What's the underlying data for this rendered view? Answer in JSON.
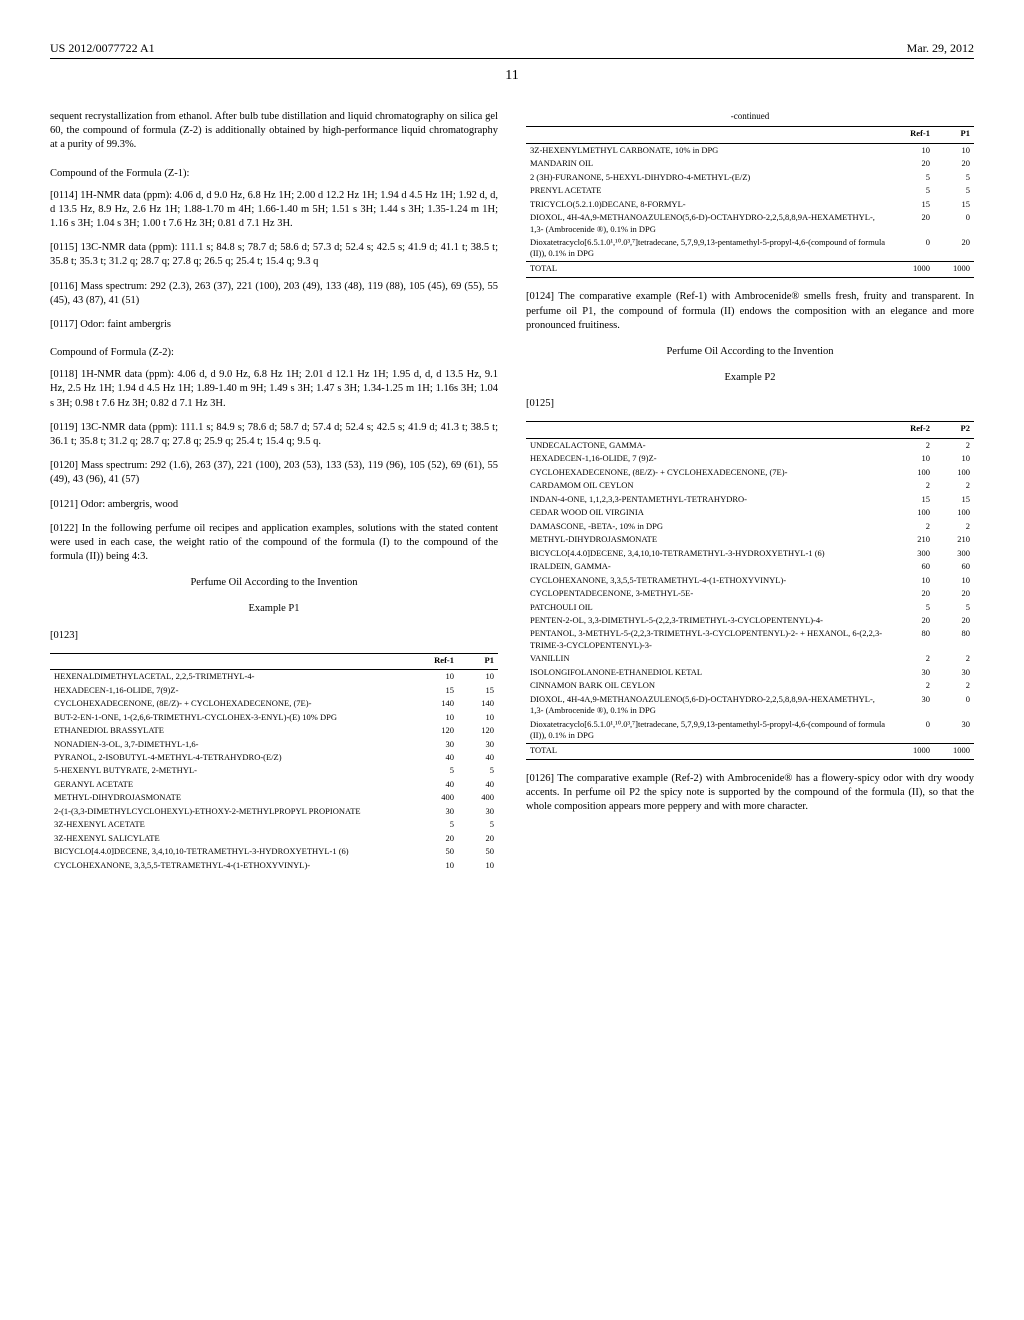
{
  "header": {
    "left": "US 2012/0077722 A1",
    "right": "Mar. 29, 2012"
  },
  "page_number": "11",
  "col1": {
    "intro": "sequent recrystallization from ethanol. After bulb tube distillation and liquid chromatography on silica gel 60, the compound of formula (Z-2) is additionally obtained by high-performance liquid chromatography at a purity of 99.3%.",
    "z1_title": "Compound of the Formula (Z-1):",
    "p0114": "[0114]   1H-NMR data (ppm): 4.06 d, d 9.0 Hz, 6.8 Hz 1H; 2.00 d 12.2 Hz 1H; 1.94 d 4.5 Hz 1H; 1.92 d, d, d 13.5 Hz, 8.9 Hz, 2.6 Hz 1H; 1.88-1.70 m 4H; 1.66-1.40 m 5H; 1.51 s 3H; 1.44 s 3H; 1.35-1.24 m 1H; 1.16 s 3H; 1.04 s 3H; 1.00 t 7.6 Hz 3H; 0.81 d 7.1 Hz 3H.",
    "p0115": "[0115]   13C-NMR data (ppm): 111.1 s; 84.8 s; 78.7 d; 58.6 d; 57.3 d; 52.4 s; 42.5 s; 41.9 d; 41.1 t; 38.5 t; 35.8 t; 35.3 t; 31.2 q; 28.7 q; 27.8 q; 26.5 q; 25.4 t; 15.4 q; 9.3 q",
    "p0116": "[0116]   Mass spectrum: 292 (2.3), 263 (37), 221 (100), 203 (49), 133 (48), 119 (88), 105 (45), 69 (55), 55 (45), 43 (87), 41 (51)",
    "p0117": "[0117]   Odor: faint ambergris",
    "z2_title": "Compound of Formula (Z-2):",
    "p0118": "[0118]   1H-NMR data (ppm): 4.06 d, d 9.0 Hz, 6.8 Hz 1H; 2.01 d 12.1 Hz 1H; 1.95 d, d, d 13.5 Hz, 9.1 Hz, 2.5 Hz 1H; 1.94 d 4.5 Hz 1H; 1.89-1.40 m 9H; 1.49 s 3H; 1.47 s 3H; 1.34-1.25 m 1H; 1.16s 3H; 1.04 s 3H; 0.98 t 7.6 Hz 3H; 0.82 d 7.1 Hz 3H.",
    "p0119": "[0119]   13C-NMR data (ppm): 111.1 s; 84.9 s; 78.6 d; 58.7 d; 57.4 d; 52.4 s; 42.5 s; 41.9 d; 41.3 t; 38.5 t; 36.1 t; 35.8 t; 31.2 q; 28.7 q; 27.8 q; 25.9 q; 25.4 t; 15.4 q; 9.5 q.",
    "p0120": "[0120]   Mass spectrum: 292 (1.6), 263 (37), 221 (100), 203 (53), 133 (53), 119 (96), 105 (52), 69 (61), 55 (49), 43 (96), 41 (57)",
    "p0121": "[0121]   Odor: ambergris, wood",
    "p0122": "[0122]   In the following perfume oil recipes and application examples, solutions with the stated content were used in each case, the weight ratio of the compound of the formula (I) to the compound of the formula (II)) being 4:3.",
    "perfume_title": "Perfume Oil According to the Invention",
    "example_p1": "Example P1",
    "p0123": "[0123]",
    "table1": {
      "col_a": "Ref-1",
      "col_b": "P1",
      "rows": [
        [
          "HEXENALDIMETHYLACETAL, 2,2,5-TRIMETHYL-4-",
          "10",
          "10"
        ],
        [
          "HEXADECEN-1,16-OLIDE, 7(9)Z-",
          "15",
          "15"
        ],
        [
          "CYCLOHEXADECENONE, (8E/Z)- + CYCLOHEXADECENONE, (7E)-",
          "140",
          "140"
        ],
        [
          "BUT-2-EN-1-ONE, 1-(2,6,6-TRIMETHYL-CYCLOHEX-3-ENYL)-(E) 10% DPG",
          "10",
          "10"
        ],
        [
          "ETHANEDIOL BRASSYLATE",
          "120",
          "120"
        ],
        [
          "NONADIEN-3-OL, 3,7-DIMETHYL-1,6-",
          "30",
          "30"
        ],
        [
          "PYRANOL, 2-ISOBUTYL-4-METHYL-4-TETRAHYDRO-(E/Z)",
          "40",
          "40"
        ],
        [
          "5-HEXENYL BUTYRATE, 2-METHYL-",
          "5",
          "5"
        ],
        [
          "GERANYL ACETATE",
          "40",
          "40"
        ],
        [
          "METHYL-DIHYDROJASMONATE",
          "400",
          "400"
        ],
        [
          "2-(1-(3,3-DIMETHYLCYCLOHEXYL)-ETHOXY-2-METHYLPROPYL PROPIONATE",
          "30",
          "30"
        ],
        [
          "3Z-HEXENYL ACETATE",
          "5",
          "5"
        ],
        [
          "3Z-HEXENYL SALICYLATE",
          "20",
          "20"
        ],
        [
          "BICYCLO[4.4.0]DECENE, 3,4,10,10-TETRAMETHYL-3-HYDROXYETHYL-1 (6)",
          "50",
          "50"
        ],
        [
          "CYCLOHEXANONE, 3,3,5,5-TETRAMETHYL-4-(1-ETHOXYVINYL)-",
          "10",
          "10"
        ]
      ]
    }
  },
  "col2": {
    "table1_cont_caption": "-continued",
    "table1_cont": {
      "col_a": "Ref-1",
      "col_b": "P1",
      "rows": [
        [
          "3Z-HEXENYLMETHYL CARBONATE, 10% in DPG",
          "10",
          "10"
        ],
        [
          "MANDARIN OIL",
          "20",
          "20"
        ],
        [
          "2 (3H)-FURANONE, 5-HEXYL-DIHYDRO-4-METHYL-(E/Z)",
          "5",
          "5"
        ],
        [
          "PRENYL ACETATE",
          "5",
          "5"
        ],
        [
          "TRICYCLO(5.2.1.0)DECANE, 8-FORMYL-",
          "15",
          "15"
        ],
        [
          "DIOXOL, 4H-4A,9-METHANOAZULENO(5,6-D)-OCTAHYDRO-2,2,5,8,8,9A-HEXAMETHYL-, 1,3- (Ambrocenide ®), 0.1% in DPG",
          "20",
          "0"
        ],
        [
          "Dioxatetracyclo[6.5.1.0¹,¹⁰.0³,⁷]tetradecane, 5,7,9,9,13-pentamethyl-5-propyl-4,6-(compound of formula (II)), 0.1% in DPG",
          "0",
          "20"
        ]
      ],
      "total": [
        "TOTAL",
        "1000",
        "1000"
      ]
    },
    "p0124": "[0124]   The comparative example (Ref-1) with Ambrocenide® smells fresh, fruity and transparent. In perfume oil P1, the compound of formula (II) endows the composition with an elegance and more pronounced fruitiness.",
    "perfume_title": "Perfume Oil According to the Invention",
    "example_p2": "Example P2",
    "p0125": "[0125]",
    "table2": {
      "col_a": "Ref-2",
      "col_b": "P2",
      "rows": [
        [
          "UNDECALACTONE, GAMMA-",
          "2",
          "2"
        ],
        [
          "HEXADECEN-1,16-OLIDE, 7 (9)Z-",
          "10",
          "10"
        ],
        [
          "CYCLOHEXADECENONE, (8E/Z)- + CYCLOHEXADECENONE, (7E)-",
          "100",
          "100"
        ],
        [
          "CARDAMOM OIL CEYLON",
          "2",
          "2"
        ],
        [
          "INDAN-4-ONE, 1,1,2,3,3-PENTAMETHYL-TETRAHYDRO-",
          "15",
          "15"
        ],
        [
          "CEDAR WOOD OIL VIRGINIA",
          "100",
          "100"
        ],
        [
          "DAMASCONE, -BETA-, 10% in DPG",
          "2",
          "2"
        ],
        [
          "METHYL-DIHYDROJASMONATE",
          "210",
          "210"
        ],
        [
          "BICYCLO[4.4.0]DECENE, 3,4,10,10-TETRAMETHYL-3-HYDROXYETHYL-1 (6)",
          "300",
          "300"
        ],
        [
          "IRALDEIN, GAMMA-",
          "60",
          "60"
        ],
        [
          "CYCLOHEXANONE, 3,3,5,5-TETRAMETHYL-4-(1-ETHOXYVINYL)-",
          "10",
          "10"
        ],
        [
          "CYCLOPENTADECENONE, 3-METHYL-5E-",
          "20",
          "20"
        ],
        [
          "PATCHOULI OIL",
          "5",
          "5"
        ],
        [
          "PENTEN-2-OL, 3,3-DIMETHYL-5-(2,2,3-TRIMETHYL-3-CYCLOPENTENYL)-4-",
          "20",
          "20"
        ],
        [
          "PENTANOL, 3-METHYL-5-(2,2,3-TRIMETHYL-3-CYCLOPENTENYL)-2- + HEXANOL, 6-(2,2,3-TRIME-3-CYCLOPENTENYL)-3-",
          "80",
          "80"
        ],
        [
          "VANILLIN",
          "2",
          "2"
        ],
        [
          "ISOLONGIFOLANONE-ETHANEDIOL KETAL",
          "30",
          "30"
        ],
        [
          "CINNAMON BARK OIL CEYLON",
          "2",
          "2"
        ],
        [
          "DIOXOL, 4H-4A,9-METHANOAZULENO(5,6-D)-OCTAHYDRO-2,2,5,8,8,9A-HEXAMETHYL-, 1,3- (Ambrocenide ®), 0.1% in DPG",
          "30",
          "0"
        ],
        [
          "Dioxatetracyclo[6.5.1.0¹,¹⁰.0³,⁷]tetradecane, 5,7,9,9,13-pentamethyl-5-propyl-4,6-(compound of formula (II)), 0.1% in DPG",
          "0",
          "30"
        ]
      ],
      "total": [
        "TOTAL",
        "1000",
        "1000"
      ]
    },
    "p0126": "[0126]   The comparative example (Ref-2) with Ambrocenide® has a flowery-spicy odor with dry woody accents. In perfume oil P2 the spicy note is supported by the compound of the formula (II), so that the whole composition appears more peppery and with more character."
  }
}
